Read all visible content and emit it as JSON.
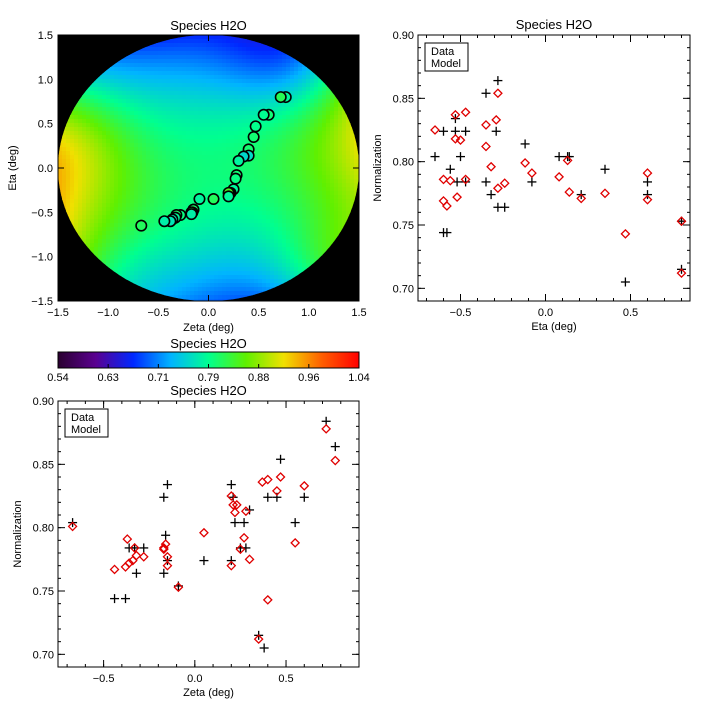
{
  "chart_data": [
    {
      "id": "map",
      "type": "heatmap",
      "title": "Species H2O",
      "xlabel": "Zeta (deg)",
      "ylabel": "Eta (deg)",
      "xlim": [
        -1.5,
        1.5
      ],
      "ylim": [
        -1.5,
        1.5
      ],
      "xticks": [
        -1.5,
        -1.0,
        -0.5,
        0.0,
        0.5,
        1.0,
        1.5
      ],
      "yticks": [
        -1.5,
        -1.0,
        -0.5,
        0.0,
        0.5,
        1.0,
        1.5
      ],
      "xtick_labels": [
        "−1.5",
        "−1.0",
        "−0.5",
        "0.0",
        "0.5",
        "1.0",
        "1.5"
      ],
      "ytick_labels": [
        "−1.5",
        "−1.0",
        "−0.5",
        "0.0",
        "0.5",
        "1.0",
        "1.5"
      ],
      "field_radius": 1.5,
      "background_color": "#000000",
      "marker": "circle",
      "marker_stroke": "#000000"
    },
    {
      "id": "eta",
      "type": "scatter",
      "title": "Species H2O",
      "xlabel": "Eta (deg)",
      "ylabel": "Normalization",
      "xlim": [
        -0.75,
        0.85
      ],
      "ylim": [
        0.69,
        0.9
      ],
      "xticks": [
        -0.5,
        0.0,
        0.5
      ],
      "xtick_labels": [
        "−0.5",
        "0.0",
        "0.5"
      ],
      "yticks": [
        0.7,
        0.75,
        0.8,
        0.85,
        0.9
      ],
      "ytick_labels": [
        "0.70",
        "0.75",
        "0.80",
        "0.85",
        "0.90"
      ],
      "legend": {
        "position": "top-left",
        "entries": [
          "Data",
          "Model"
        ],
        "colors": [
          "#000000",
          "#e00000"
        ]
      },
      "series": [
        {
          "name": "Data",
          "marker": "plus",
          "color": "#000000",
          "x": [
            0.8,
            0.8,
            0.6,
            0.6,
            0.47,
            0.35,
            0.21,
            0.14,
            0.13,
            0.08,
            -0.08,
            -0.12,
            -0.24,
            -0.28,
            -0.29,
            -0.28,
            -0.32,
            -0.35,
            -0.35,
            -0.47,
            -0.47,
            -0.5,
            -0.5,
            -0.52,
            -0.53,
            -0.53,
            -0.56,
            -0.58,
            -0.6,
            -0.6,
            -0.65
          ],
          "y": [
            0.715,
            0.753,
            0.774,
            0.784,
            0.705,
            0.794,
            0.774,
            0.804,
            0.804,
            0.804,
            0.784,
            0.814,
            0.764,
            0.764,
            0.824,
            0.864,
            0.774,
            0.784,
            0.854,
            0.784,
            0.824,
            0.804,
            0.884,
            0.784,
            0.834,
            0.824,
            0.794,
            0.744,
            0.744,
            0.824,
            0.804
          ]
        },
        {
          "name": "Model",
          "marker": "diamond",
          "color": "#e00000",
          "x": [
            0.8,
            0.8,
            0.6,
            0.6,
            0.47,
            0.35,
            0.21,
            0.14,
            0.13,
            0.08,
            -0.08,
            -0.12,
            -0.24,
            -0.28,
            -0.29,
            -0.28,
            -0.32,
            -0.35,
            -0.35,
            -0.47,
            -0.47,
            -0.5,
            -0.5,
            -0.52,
            -0.53,
            -0.53,
            -0.56,
            -0.58,
            -0.6,
            -0.6,
            -0.65
          ],
          "y": [
            0.712,
            0.753,
            0.77,
            0.791,
            0.743,
            0.775,
            0.771,
            0.776,
            0.801,
            0.788,
            0.791,
            0.799,
            0.783,
            0.779,
            0.833,
            0.854,
            0.796,
            0.829,
            0.812,
            0.786,
            0.839,
            0.817,
            0.878,
            0.772,
            0.818,
            0.837,
            0.785,
            0.765,
            0.769,
            0.786,
            0.825
          ]
        }
      ]
    },
    {
      "id": "zeta",
      "type": "scatter",
      "title": "Species H2O",
      "xlabel": "Zeta (deg)",
      "ylabel": "Normalization",
      "xlim": [
        -0.75,
        0.9
      ],
      "ylim": [
        0.69,
        0.9
      ],
      "xticks": [
        -0.5,
        0.0,
        0.5
      ],
      "xtick_labels": [
        "−0.5",
        "0.0",
        "0.5"
      ],
      "yticks": [
        0.7,
        0.75,
        0.8,
        0.85,
        0.9
      ],
      "ytick_labels": [
        "0.70",
        "0.75",
        "0.80",
        "0.85",
        "0.90"
      ],
      "legend": {
        "position": "top-left",
        "entries": [
          "Data",
          "Model"
        ],
        "colors": [
          "#000000",
          "#e00000"
        ]
      },
      "series": [
        {
          "name": "Data",
          "marker": "plus",
          "color": "#000000",
          "x": [
            0.77,
            0.72,
            0.6,
            0.55,
            0.47,
            0.45,
            0.4,
            0.38,
            0.35,
            0.3,
            0.28,
            0.27,
            0.25,
            0.22,
            0.21,
            0.2,
            0.2,
            0.05,
            -0.09,
            -0.15,
            -0.15,
            -0.16,
            -0.17,
            -0.17,
            -0.28,
            -0.32,
            -0.33,
            -0.36,
            -0.38,
            -0.44,
            -0.67
          ],
          "y": [
            0.864,
            0.884,
            0.824,
            0.804,
            0.854,
            0.824,
            0.824,
            0.705,
            0.715,
            0.814,
            0.784,
            0.804,
            0.784,
            0.804,
            0.824,
            0.834,
            0.774,
            0.774,
            0.754,
            0.774,
            0.834,
            0.794,
            0.764,
            0.824,
            0.784,
            0.764,
            0.784,
            0.784,
            0.744,
            0.744,
            0.804
          ]
        },
        {
          "name": "Model",
          "marker": "diamond",
          "color": "#e00000",
          "x": [
            0.77,
            0.72,
            0.6,
            0.55,
            0.47,
            0.45,
            0.4,
            0.4,
            0.35,
            0.3,
            0.28,
            0.27,
            0.25,
            0.22,
            0.21,
            0.2,
            0.2,
            0.05,
            -0.09,
            -0.15,
            -0.15,
            -0.16,
            -0.17,
            -0.17,
            -0.28,
            -0.32,
            -0.33,
            -0.36,
            -0.38,
            -0.44,
            -0.67,
            0.23,
            0.37,
            -0.37,
            -0.34
          ],
          "y": [
            0.853,
            0.878,
            0.833,
            0.788,
            0.84,
            0.829,
            0.838,
            0.743,
            0.712,
            0.775,
            0.813,
            0.792,
            0.783,
            0.812,
            0.818,
            0.825,
            0.77,
            0.796,
            0.753,
            0.77,
            0.777,
            0.787,
            0.784,
            0.783,
            0.777,
            0.778,
            0.784,
            0.772,
            0.769,
            0.767,
            0.801,
            0.818,
            0.836,
            0.791,
            0.774
          ]
        }
      ]
    },
    {
      "id": "colorbar",
      "type": "colorbar",
      "title": "Species H2O",
      "range": [
        0.54,
        1.04
      ],
      "tick_labels": [
        "0.54",
        "0.63",
        "0.71",
        "0.79",
        "0.88",
        "0.96",
        "1.04"
      ],
      "colors": [
        "#2a0030",
        "#5a0090",
        "#0028ff",
        "#00b4ff",
        "#00ff90",
        "#60f000",
        "#f0e000",
        "#ff6000",
        "#ff0000"
      ]
    }
  ]
}
